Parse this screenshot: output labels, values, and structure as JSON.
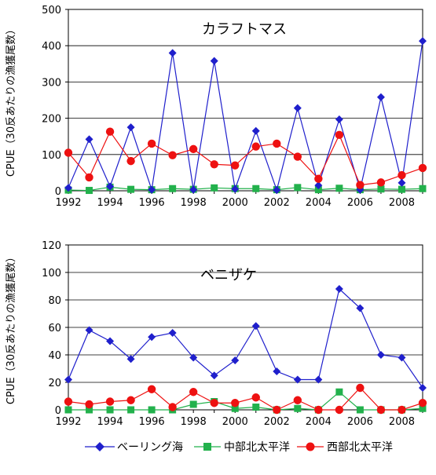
{
  "chart_data": [
    {
      "type": "line",
      "title": "カラフトマス",
      "ylabel": "CPUE（30反あたりの漁獲尾数）",
      "xlabel": "",
      "x": [
        1992,
        1993,
        1994,
        1995,
        1996,
        1997,
        1998,
        1999,
        2000,
        2001,
        2002,
        2003,
        2004,
        2005,
        2006,
        2007,
        2008,
        2009
      ],
      "x_ticks": [
        "1992",
        "1994",
        "1996",
        "1998",
        "2000",
        "2002",
        "2004",
        "2006",
        "2008"
      ],
      "ylim": [
        0,
        500
      ],
      "y_ticks": [
        "0",
        "100",
        "200",
        "300",
        "400",
        "500"
      ],
      "grid": true,
      "series": [
        {
          "name": "ベーリング海",
          "color": "#1f1fcc",
          "marker": "diamond",
          "values": [
            8,
            142,
            12,
            175,
            3,
            380,
            3,
            358,
            5,
            165,
            2,
            228,
            15,
            197,
            3,
            258,
            22,
            413
          ]
        },
        {
          "name": "中部北太平洋",
          "color": "#22b14c",
          "marker": "square",
          "values": [
            2,
            1,
            10,
            4,
            3,
            6,
            4,
            8,
            6,
            6,
            3,
            9,
            3,
            7,
            3,
            5,
            4,
            6
          ]
        },
        {
          "name": "西部北太平洋",
          "color": "#ee1111",
          "marker": "circle",
          "values": [
            105,
            37,
            163,
            82,
            130,
            98,
            115,
            73,
            70,
            122,
            130,
            94,
            33,
            154,
            16,
            23,
            43,
            63
          ]
        }
      ]
    },
    {
      "type": "line",
      "title": "ベニザケ",
      "ylabel": "CPUE（30反あたりの漁獲尾数）",
      "xlabel": "",
      "x": [
        1992,
        1993,
        1994,
        1995,
        1996,
        1997,
        1998,
        1999,
        2000,
        2001,
        2002,
        2003,
        2004,
        2005,
        2006,
        2007,
        2008,
        2009
      ],
      "x_ticks": [
        "1992",
        "1994",
        "1996",
        "1998",
        "2000",
        "2002",
        "2004",
        "2006",
        "2008"
      ],
      "ylim": [
        0,
        120
      ],
      "y_ticks": [
        "0",
        "20",
        "40",
        "60",
        "80",
        "100",
        "120"
      ],
      "grid": true,
      "series": [
        {
          "name": "ベーリング海",
          "color": "#1f1fcc",
          "marker": "diamond",
          "values": [
            22,
            58,
            50,
            37,
            53,
            56,
            38,
            25,
            36,
            61,
            28,
            22,
            22,
            88,
            74,
            40,
            38,
            16
          ]
        },
        {
          "name": "中部北太平洋",
          "color": "#22b14c",
          "marker": "square",
          "values": [
            0,
            0,
            0,
            0,
            0,
            0,
            4,
            6,
            1,
            2,
            0,
            1,
            0,
            13,
            0,
            0,
            0,
            1
          ]
        },
        {
          "name": "西部北太平洋",
          "color": "#ee1111",
          "marker": "circle",
          "values": [
            6,
            4,
            6,
            7,
            15,
            2,
            13,
            5,
            5,
            9,
            0,
            7,
            0,
            0,
            16,
            0,
            0,
            5
          ]
        }
      ]
    }
  ],
  "legend": {
    "items": [
      {
        "label": "ベーリング海",
        "color": "#1f1fcc",
        "marker": "diamond"
      },
      {
        "label": "中部北太平洋",
        "color": "#22b14c",
        "marker": "square"
      },
      {
        "label": "西部北太平洋",
        "color": "#ee1111",
        "marker": "circle"
      }
    ]
  }
}
